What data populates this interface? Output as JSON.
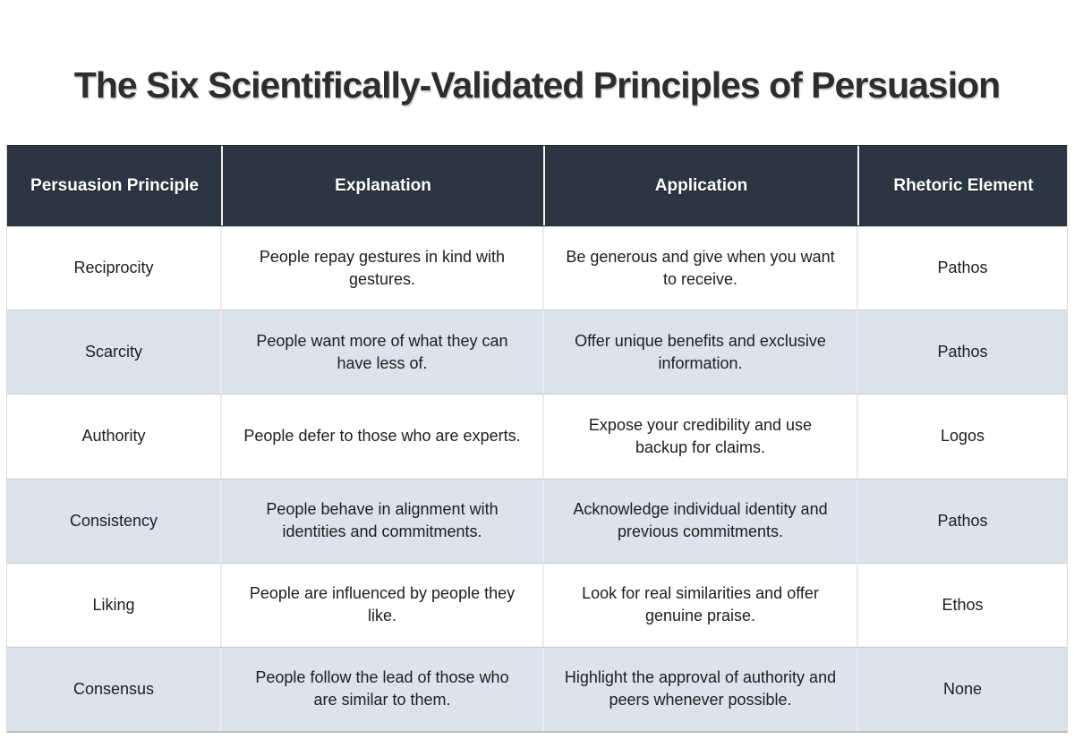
{
  "title": "The Six Scientifically-Validated Principles of Persuasion",
  "table": {
    "columns": [
      "Persuasion Principle",
      "Explanation",
      "Application",
      "Rhetoric Element"
    ],
    "rows": [
      {
        "principle": "Reciprocity",
        "explanation": "People repay gestures in kind with gestures.",
        "application": "Be generous and give when you want to receive.",
        "rhetoric": "Pathos"
      },
      {
        "principle": "Scarcity",
        "explanation": "People want more of what they can have less of.",
        "application": "Offer unique benefits and exclusive information.",
        "rhetoric": "Pathos"
      },
      {
        "principle": "Authority",
        "explanation": "People defer to those who are experts.",
        "application": "Expose your credibility and use backup for claims.",
        "rhetoric": "Logos"
      },
      {
        "principle": "Consistency",
        "explanation": "People behave in alignment with identities and commitments.",
        "application": "Acknowledge individual identity and previous commitments.",
        "rhetoric": "Pathos"
      },
      {
        "principle": "Liking",
        "explanation": "People are influenced by people they like.",
        "application": "Look for real similarities and offer genuine praise.",
        "rhetoric": "Ethos"
      },
      {
        "principle": "Consensus",
        "explanation": "People follow the lead of those who are similar to them.",
        "application": "Highlight the approval of authority and peers whenever possible.",
        "rhetoric": "None"
      }
    ]
  },
  "colors": {
    "header_bg": "#2b3642",
    "header_text": "#ffffff",
    "stripe_bg": "#dce3ee",
    "row_bg": "#ffffff",
    "body_text": "#1d1d1f",
    "title_text": "#2d2d2d"
  },
  "chart_data": {
    "type": "table",
    "title": "The Six Scientifically-Validated Principles of Persuasion",
    "columns": [
      "Persuasion Principle",
      "Explanation",
      "Application",
      "Rhetoric Element"
    ],
    "rows": [
      [
        "Reciprocity",
        "People repay gestures in kind with gestures.",
        "Be generous and give when you want to receive.",
        "Pathos"
      ],
      [
        "Scarcity",
        "People want more of what they can have less of.",
        "Offer unique benefits and exclusive information.",
        "Pathos"
      ],
      [
        "Authority",
        "People defer to those who are experts.",
        "Expose your credibility and use backup for claims.",
        "Logos"
      ],
      [
        "Consistency",
        "People behave in alignment with identities and commitments.",
        "Acknowledge individual identity and previous commitments.",
        "Pathos"
      ],
      [
        "Liking",
        "People are influenced by people they like.",
        "Look for real similarities and offer genuine praise.",
        "Ethos"
      ],
      [
        "Consensus",
        "People follow the lead of those who are similar to them.",
        "Highlight the approval of authority and peers whenever possible.",
        "None"
      ]
    ],
    "layout": {
      "header_position": "top",
      "row_striping": true,
      "legend": "none",
      "grid": true
    }
  }
}
